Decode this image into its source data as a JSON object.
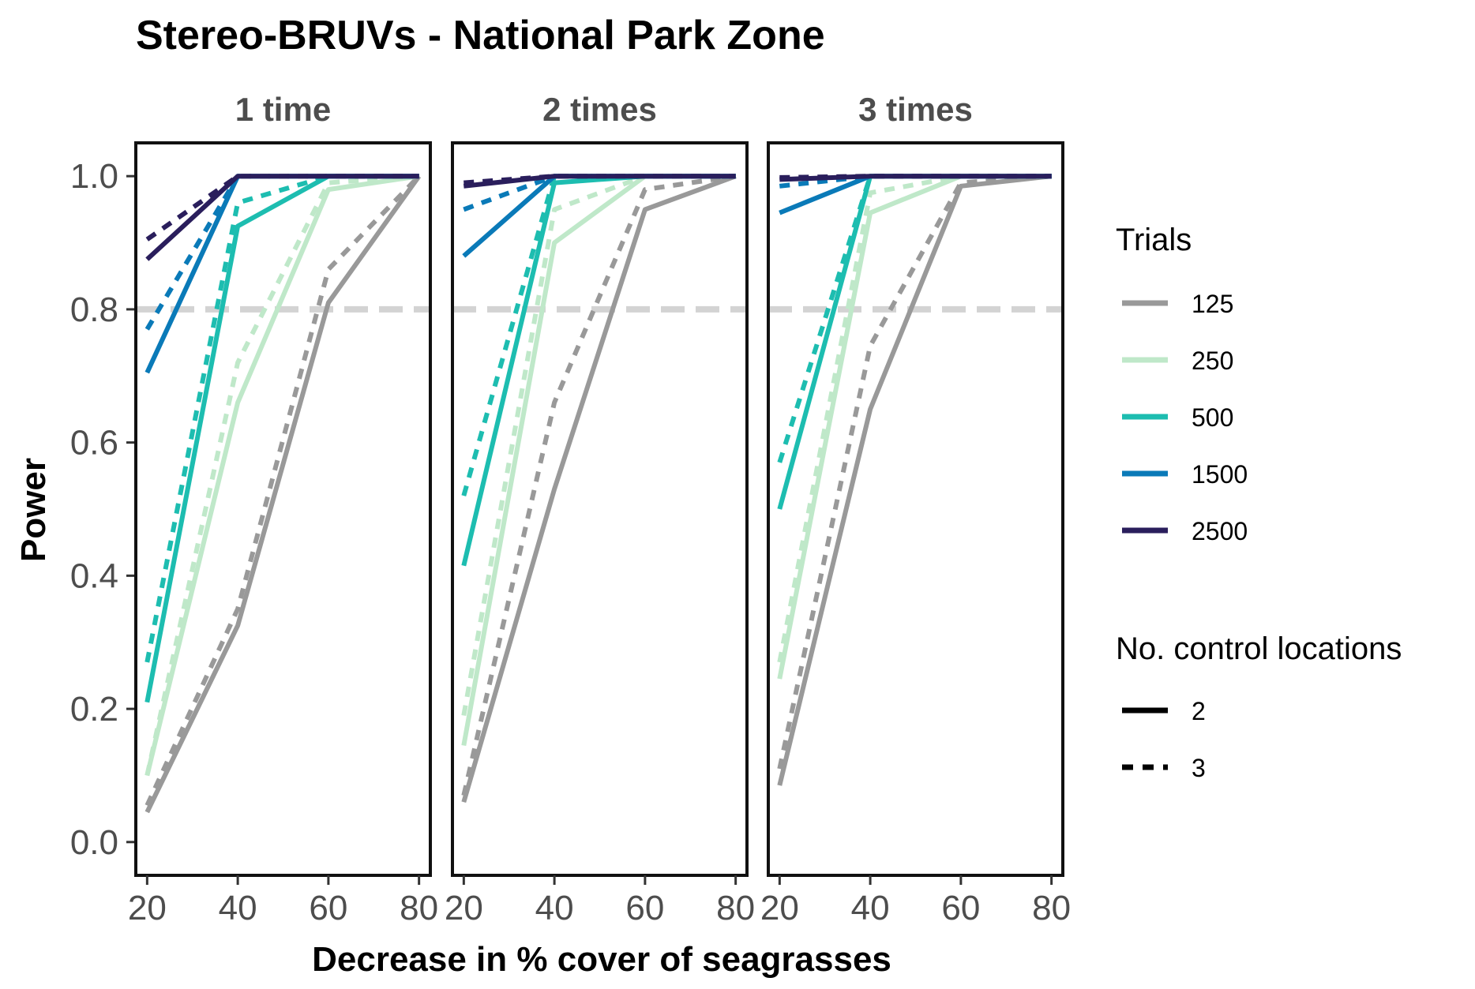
{
  "chart_data": {
    "type": "line",
    "title": "Stereo-BRUVs - National Park Zone",
    "xlabel": "Decrease in % cover of seagrasses",
    "ylabel": "Power",
    "x": [
      20,
      40,
      60,
      80
    ],
    "x_ticks": [
      "20",
      "40",
      "60",
      "80"
    ],
    "y_ticks": [
      "0.0",
      "0.2",
      "0.4",
      "0.6",
      "0.8",
      "1.0"
    ],
    "xlim": [
      17.5,
      82.5
    ],
    "ylim": [
      -0.05,
      1.05
    ],
    "reference_line": {
      "y": 0.8,
      "color": "#d3d3d3",
      "style": "dashed"
    },
    "grid": false,
    "legend_position": "right",
    "legend": {
      "color_title": "Trials",
      "color_entries": [
        {
          "label": "125",
          "color": "#999999"
        },
        {
          "label": "250",
          "color": "#bfe8c9"
        },
        {
          "label": "500",
          "color": "#1dbdb0"
        },
        {
          "label": "1500",
          "color": "#0a7ab8"
        },
        {
          "label": "2500",
          "color": "#2a1e5c"
        }
      ],
      "linetype_title": "No. control locations",
      "linetype_entries": [
        {
          "label": "2",
          "style": "solid"
        },
        {
          "label": "3",
          "style": "dashed"
        }
      ]
    },
    "panels": [
      {
        "label": "1 time",
        "series": [
          {
            "trials": "125",
            "controls": "2",
            "values": [
              0.045,
              0.325,
              0.81,
              1.0
            ]
          },
          {
            "trials": "125",
            "controls": "3",
            "values": [
              0.055,
              0.35,
              0.86,
              1.0
            ]
          },
          {
            "trials": "250",
            "controls": "2",
            "values": [
              0.1,
              0.66,
              0.98,
              1.0
            ]
          },
          {
            "trials": "250",
            "controls": "3",
            "values": [
              0.1,
              0.72,
              0.99,
              1.0
            ]
          },
          {
            "trials": "500",
            "controls": "2",
            "values": [
              0.21,
              0.925,
              1.0,
              1.0
            ]
          },
          {
            "trials": "500",
            "controls": "3",
            "values": [
              0.27,
              0.96,
              1.0,
              1.0
            ]
          },
          {
            "trials": "1500",
            "controls": "2",
            "values": [
              0.705,
              1.0,
              1.0,
              1.0
            ]
          },
          {
            "trials": "1500",
            "controls": "3",
            "values": [
              0.77,
              1.0,
              1.0,
              1.0
            ]
          },
          {
            "trials": "2500",
            "controls": "2",
            "values": [
              0.875,
              1.0,
              1.0,
              1.0
            ]
          },
          {
            "trials": "2500",
            "controls": "3",
            "values": [
              0.905,
              1.0,
              1.0,
              1.0
            ]
          }
        ]
      },
      {
        "label": "2 times",
        "series": [
          {
            "trials": "125",
            "controls": "2",
            "values": [
              0.06,
              0.53,
              0.95,
              1.0
            ]
          },
          {
            "trials": "125",
            "controls": "3",
            "values": [
              0.07,
              0.66,
              0.98,
              1.0
            ]
          },
          {
            "trials": "250",
            "controls": "2",
            "values": [
              0.145,
              0.9,
              1.0,
              1.0
            ]
          },
          {
            "trials": "250",
            "controls": "3",
            "values": [
              0.19,
              0.95,
              1.0,
              1.0
            ]
          },
          {
            "trials": "500",
            "controls": "2",
            "values": [
              0.415,
              0.99,
              1.0,
              1.0
            ]
          },
          {
            "trials": "500",
            "controls": "3",
            "values": [
              0.52,
              1.0,
              1.0,
              1.0
            ]
          },
          {
            "trials": "1500",
            "controls": "2",
            "values": [
              0.88,
              1.0,
              1.0,
              1.0
            ]
          },
          {
            "trials": "1500",
            "controls": "3",
            "values": [
              0.95,
              1.0,
              1.0,
              1.0
            ]
          },
          {
            "trials": "2500",
            "controls": "2",
            "values": [
              0.985,
              1.0,
              1.0,
              1.0
            ]
          },
          {
            "trials": "2500",
            "controls": "3",
            "values": [
              0.99,
              1.0,
              1.0,
              1.0
            ]
          }
        ]
      },
      {
        "label": "3 times",
        "series": [
          {
            "trials": "125",
            "controls": "2",
            "values": [
              0.085,
              0.65,
              0.985,
              1.0
            ]
          },
          {
            "trials": "125",
            "controls": "3",
            "values": [
              0.11,
              0.745,
              0.99,
              1.0
            ]
          },
          {
            "trials": "250",
            "controls": "2",
            "values": [
              0.245,
              0.945,
              1.0,
              1.0
            ]
          },
          {
            "trials": "250",
            "controls": "3",
            "values": [
              0.27,
              0.975,
              1.0,
              1.0
            ]
          },
          {
            "trials": "500",
            "controls": "2",
            "values": [
              0.5,
              1.0,
              1.0,
              1.0
            ]
          },
          {
            "trials": "500",
            "controls": "3",
            "values": [
              0.57,
              1.0,
              1.0,
              1.0
            ]
          },
          {
            "trials": "1500",
            "controls": "2",
            "values": [
              0.945,
              1.0,
              1.0,
              1.0
            ]
          },
          {
            "trials": "1500",
            "controls": "3",
            "values": [
              0.985,
              1.0,
              1.0,
              1.0
            ]
          },
          {
            "trials": "2500",
            "controls": "2",
            "values": [
              0.995,
              1.0,
              1.0,
              1.0
            ]
          },
          {
            "trials": "2500",
            "controls": "3",
            "values": [
              0.998,
              1.0,
              1.0,
              1.0
            ]
          }
        ]
      }
    ]
  }
}
